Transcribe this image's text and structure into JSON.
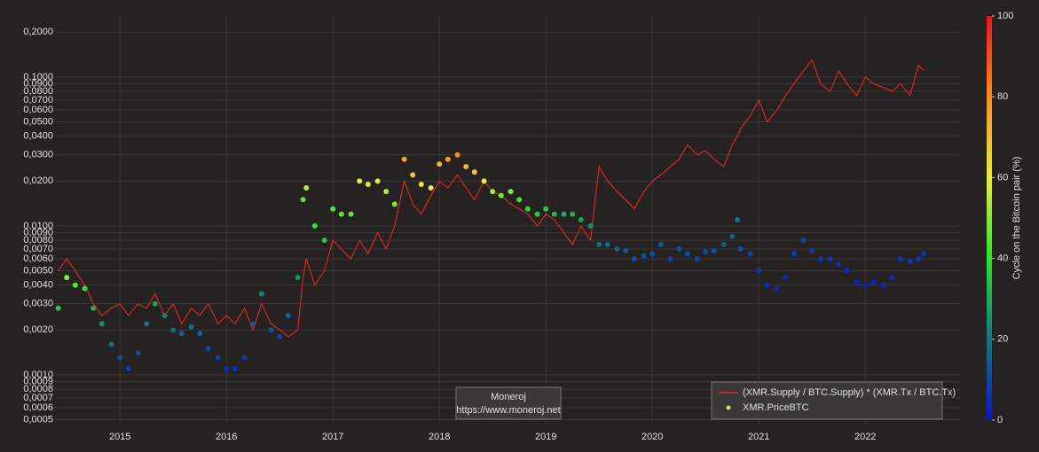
{
  "chart_data": {
    "type": "line",
    "ylog": true,
    "grid": true,
    "legend_position": "bottom-right",
    "xlim": [
      2014.39,
      2022.89
    ],
    "xticks": [
      2015,
      2016,
      2017,
      2018,
      2019,
      2020,
      2021,
      2022
    ],
    "ylim": [
      0.00047,
      0.257
    ],
    "yticks": [
      {
        "value": 0.0005,
        "label": "0,0005"
      },
      {
        "value": 0.0006,
        "label": "0,0006"
      },
      {
        "value": 0.0007,
        "label": "0,0007"
      },
      {
        "value": 0.0008,
        "label": "0,0008"
      },
      {
        "value": 0.0009,
        "label": "0,0009"
      },
      {
        "value": 0.001,
        "label": "0,0010"
      },
      {
        "value": 0.002,
        "label": "0,0020"
      },
      {
        "value": 0.003,
        "label": "0,0030"
      },
      {
        "value": 0.004,
        "label": "0,0040"
      },
      {
        "value": 0.005,
        "label": "0,0050"
      },
      {
        "value": 0.006,
        "label": "0,0060"
      },
      {
        "value": 0.007,
        "label": "0,0070"
      },
      {
        "value": 0.008,
        "label": "0,0080"
      },
      {
        "value": 0.009,
        "label": "0,0090"
      },
      {
        "value": 0.01,
        "label": "0,0100"
      },
      {
        "value": 0.02,
        "label": "0,0200"
      },
      {
        "value": 0.03,
        "label": "0,0300"
      },
      {
        "value": 0.04,
        "label": "0,0400"
      },
      {
        "value": 0.05,
        "label": "0,0500"
      },
      {
        "value": 0.06,
        "label": "0,0600"
      },
      {
        "value": 0.07,
        "label": "0,0700"
      },
      {
        "value": 0.08,
        "label": "0,0800"
      },
      {
        "value": 0.09,
        "label": "0,0900"
      },
      {
        "value": 0.1,
        "label": "0,1000"
      },
      {
        "value": 0.2,
        "label": "0,2000"
      }
    ],
    "annotation": [
      "Moneroj",
      "https://www.moneroj.net"
    ],
    "colorbar": {
      "title": "Cycle on the Bitcoin pair (%)",
      "lim": [
        0,
        100
      ],
      "ticks": [
        0,
        20,
        40,
        60,
        80,
        100
      ],
      "colorscale": [
        [
          0,
          "#0a14d2"
        ],
        [
          20,
          "#0f7882"
        ],
        [
          40,
          "#28e628"
        ],
        [
          60,
          "#e6f03c"
        ],
        [
          80,
          "#ff8c1a"
        ],
        [
          100,
          "#e6141a"
        ]
      ]
    },
    "x": [
      2014.42,
      2014.5,
      2014.58,
      2014.67,
      2014.75,
      2014.83,
      2014.92,
      2015.0,
      2015.08,
      2015.17,
      2015.25,
      2015.33,
      2015.42,
      2015.5,
      2015.58,
      2015.67,
      2015.75,
      2015.83,
      2015.92,
      2016.0,
      2016.08,
      2016.17,
      2016.25,
      2016.33,
      2016.42,
      2016.5,
      2016.58,
      2016.67,
      2016.72,
      2016.75,
      2016.83,
      2016.92,
      2017.0,
      2017.08,
      2017.17,
      2017.25,
      2017.33,
      2017.42,
      2017.5,
      2017.58,
      2017.67,
      2017.75,
      2017.83,
      2017.92,
      2018.0,
      2018.08,
      2018.17,
      2018.25,
      2018.33,
      2018.42,
      2018.5,
      2018.58,
      2018.67,
      2018.75,
      2018.83,
      2018.92,
      2019.0,
      2019.08,
      2019.17,
      2019.25,
      2019.33,
      2019.42,
      2019.5,
      2019.58,
      2019.67,
      2019.75,
      2019.83,
      2019.92,
      2020.0,
      2020.08,
      2020.17,
      2020.25,
      2020.33,
      2020.42,
      2020.5,
      2020.58,
      2020.67,
      2020.75,
      2020.8,
      2020.83,
      2020.92,
      2021.0,
      2021.08,
      2021.17,
      2021.25,
      2021.33,
      2021.42,
      2021.5,
      2021.58,
      2021.67,
      2021.75,
      2021.83,
      2021.92,
      2022.0,
      2022.08,
      2022.17,
      2022.25,
      2022.33,
      2022.42,
      2022.5,
      2022.55
    ],
    "series": [
      {
        "name": "(XMR.Supply / BTC.Supply) * (XMR.Tx / BTC.Tx)",
        "type": "line",
        "color": "#d62728",
        "values": [
          0.005,
          0.006,
          0.005,
          0.004,
          0.003,
          0.0025,
          0.0028,
          0.003,
          0.0025,
          0.003,
          0.0028,
          0.0035,
          0.0025,
          0.003,
          0.0022,
          0.0028,
          0.0025,
          0.003,
          0.0022,
          0.0025,
          0.0022,
          0.0028,
          0.002,
          0.003,
          0.0022,
          0.002,
          0.0018,
          0.002,
          0.0045,
          0.006,
          0.004,
          0.005,
          0.008,
          0.007,
          0.006,
          0.008,
          0.0065,
          0.009,
          0.007,
          0.01,
          0.02,
          0.014,
          0.012,
          0.016,
          0.02,
          0.018,
          0.022,
          0.018,
          0.015,
          0.02,
          0.017,
          0.016,
          0.014,
          0.013,
          0.012,
          0.01,
          0.012,
          0.011,
          0.009,
          0.0075,
          0.01,
          0.008,
          0.025,
          0.02,
          0.017,
          0.015,
          0.013,
          0.017,
          0.02,
          0.022,
          0.025,
          0.028,
          0.035,
          0.03,
          0.032,
          0.028,
          0.025,
          0.035,
          0.04,
          0.045,
          0.055,
          0.07,
          0.05,
          0.06,
          0.075,
          0.09,
          0.11,
          0.13,
          0.09,
          0.08,
          0.11,
          0.09,
          0.075,
          0.1,
          0.09,
          0.085,
          0.08,
          0.09,
          0.075,
          0.12,
          0.11
        ]
      },
      {
        "name": "XMR.PriceBTC",
        "type": "scatter",
        "color": "#c8f03c",
        "values": [
          0.0028,
          0.0045,
          0.004,
          0.0038,
          0.0028,
          0.0022,
          0.0016,
          0.0013,
          0.0011,
          0.0014,
          0.0022,
          0.003,
          0.0025,
          0.002,
          0.0019,
          0.0021,
          0.0019,
          0.0015,
          0.0013,
          0.0011,
          0.0011,
          0.0013,
          0.0022,
          0.0035,
          0.002,
          0.0018,
          0.0025,
          0.0045,
          0.015,
          0.018,
          0.01,
          0.008,
          0.013,
          0.012,
          0.012,
          0.02,
          0.019,
          0.02,
          0.017,
          0.014,
          0.028,
          0.022,
          0.019,
          0.018,
          0.026,
          0.028,
          0.03,
          0.025,
          0.023,
          0.02,
          0.017,
          0.016,
          0.017,
          0.015,
          0.013,
          0.012,
          0.013,
          0.012,
          0.012,
          0.012,
          0.011,
          0.01,
          0.0075,
          0.0075,
          0.007,
          0.0068,
          0.006,
          0.0063,
          0.0065,
          0.0075,
          0.006,
          0.007,
          0.0065,
          0.006,
          0.0067,
          0.0068,
          0.0075,
          0.0085,
          0.011,
          0.007,
          0.0065,
          0.005,
          0.004,
          0.0038,
          0.0045,
          0.0065,
          0.008,
          0.0068,
          0.006,
          0.006,
          0.0055,
          0.005,
          0.0042,
          0.004,
          0.0042,
          0.004,
          0.0045,
          0.006,
          0.0058,
          0.006,
          0.0065
        ],
        "cycle": [
          35,
          50,
          45,
          40,
          30,
          25,
          18,
          12,
          8,
          12,
          20,
          28,
          22,
          18,
          16,
          18,
          15,
          10,
          8,
          5,
          5,
          8,
          15,
          22,
          12,
          10,
          15,
          25,
          45,
          55,
          40,
          35,
          45,
          45,
          45,
          60,
          58,
          60,
          55,
          50,
          75,
          68,
          62,
          60,
          72,
          78,
          80,
          72,
          68,
          60,
          52,
          48,
          50,
          42,
          38,
          35,
          35,
          32,
          30,
          30,
          28,
          25,
          18,
          17,
          15,
          14,
          12,
          12,
          12,
          14,
          10,
          12,
          11,
          10,
          11,
          12,
          14,
          16,
          20,
          12,
          10,
          6,
          4,
          3,
          4,
          8,
          10,
          8,
          6,
          6,
          5,
          4,
          3,
          2,
          3,
          3,
          4,
          6,
          6,
          6,
          7
        ]
      }
    ]
  }
}
